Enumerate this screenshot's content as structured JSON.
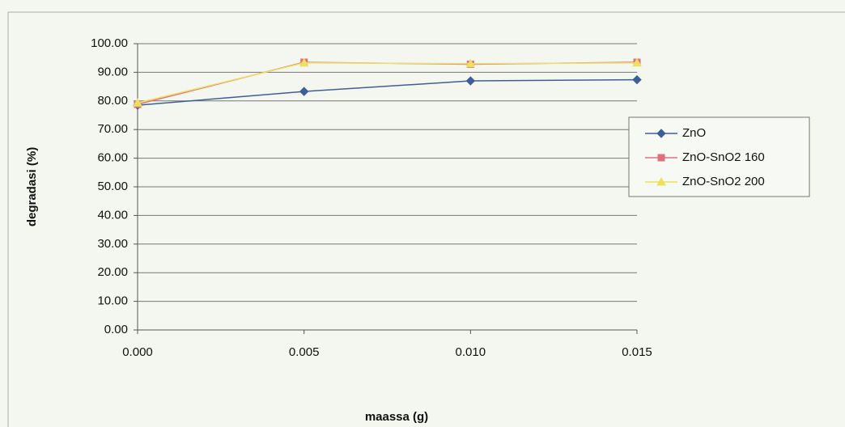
{
  "chart_data": {
    "type": "line",
    "x_label": "maassa (g)",
    "y_label": "degradasi (%)",
    "x": [
      0,
      0.005,
      0.01,
      0.015
    ],
    "xlim": [
      0,
      0.015
    ],
    "xticks": [
      {
        "value": 0,
        "label": "0.000"
      },
      {
        "value": 0.005,
        "label": "0.005"
      },
      {
        "value": 0.01,
        "label": "0.010"
      },
      {
        "value": 0.015,
        "label": "0.015"
      }
    ],
    "ylim": [
      0,
      100
    ],
    "yticks": [
      {
        "value": 0,
        "label": "0.00"
      },
      {
        "value": 10,
        "label": "10.00"
      },
      {
        "value": 20,
        "label": "20.00"
      },
      {
        "value": 30,
        "label": "30.00"
      },
      {
        "value": 40,
        "label": "40.00"
      },
      {
        "value": 50,
        "label": "50.00"
      },
      {
        "value": 60,
        "label": "60.00"
      },
      {
        "value": 70,
        "label": "70.00"
      },
      {
        "value": 80,
        "label": "80.00"
      },
      {
        "value": 90,
        "label": "90.00"
      },
      {
        "value": 100,
        "label": "100.00"
      }
    ],
    "grid": true,
    "legend": "right",
    "series": [
      {
        "name": "ZnO",
        "color": "#3e5f95",
        "marker": "diamond",
        "values": [
          78.5,
          83.3,
          87.0,
          87.4
        ]
      },
      {
        "name": "ZnO-SnO2 160",
        "color": "#e0707e",
        "marker": "square",
        "values": [
          78.8,
          93.5,
          92.8,
          93.5
        ]
      },
      {
        "name": "ZnO-SnO2 200",
        "color": "#ece060",
        "marker": "triangle",
        "values": [
          79.3,
          93.3,
          93.0,
          93.3
        ]
      }
    ]
  }
}
